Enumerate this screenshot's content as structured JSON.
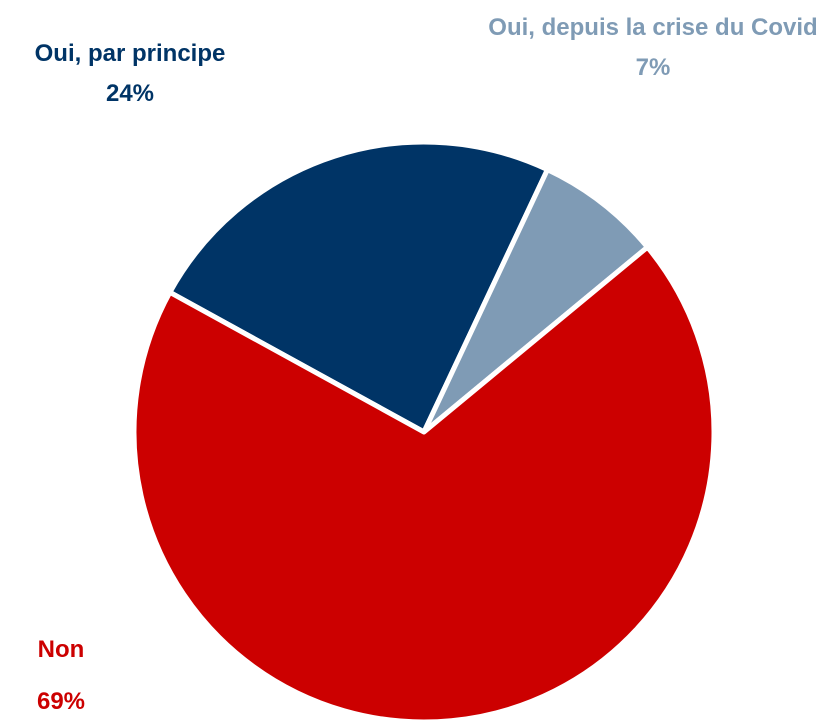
{
  "chart_data": {
    "type": "pie",
    "categories": [
      "Oui, par principe",
      "Oui, depuis la crise du Covid",
      "Non"
    ],
    "values": [
      24,
      7,
      69
    ],
    "value_labels": [
      "24%",
      "7%",
      "69%"
    ],
    "colors": [
      "#003466",
      "#7f9bb5",
      "#cc0000"
    ]
  }
}
